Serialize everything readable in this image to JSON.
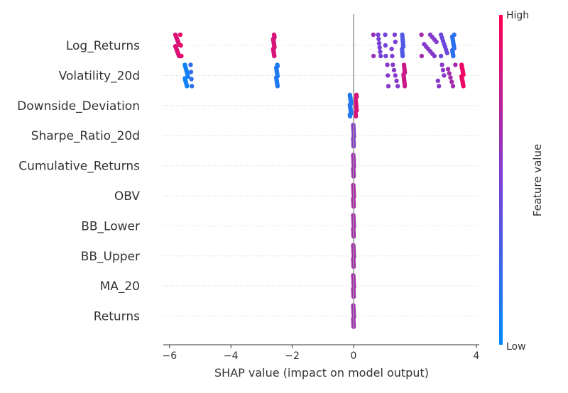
{
  "chart_data": {
    "type": "scatter",
    "subtype": "shap-beeswarm",
    "title": "",
    "xlabel": "SHAP value (impact on model output)",
    "xlim": [
      -6.2,
      4.1
    ],
    "xticks": [
      -6,
      -4,
      -2,
      0,
      4
    ],
    "colorbar": {
      "label": "Feature value",
      "high_label": "High",
      "low_label": "Low",
      "low_color": "#008bfb",
      "high_color": "#ff0052"
    },
    "features": [
      {
        "name": "Log_Returns",
        "clusters": [
          {
            "x": -5.75,
            "spread": 0.06,
            "count": 14,
            "value": 0.92
          },
          {
            "x": -5.6,
            "spread": 0.05,
            "count": 3,
            "value": 0.86
          },
          {
            "x": -2.6,
            "spread": 0.02,
            "count": 16,
            "value": 0.85
          },
          {
            "x": 0.65,
            "spread": 0.02,
            "count": 2,
            "value": 0.58
          },
          {
            "x": 0.85,
            "spread": 0.05,
            "count": 6,
            "value": 0.55
          },
          {
            "x": 1.05,
            "spread": 0.03,
            "count": 3,
            "value": 0.5
          },
          {
            "x": 1.3,
            "spread": 0.06,
            "count": 4,
            "value": 0.45
          },
          {
            "x": 1.6,
            "spread": 0.02,
            "count": 10,
            "value": 0.3
          },
          {
            "x": 2.2,
            "spread": 0.02,
            "count": 2,
            "value": 0.62
          },
          {
            "x": 2.5,
            "spread": 0.2,
            "count": 10,
            "value": 0.6
          },
          {
            "x": 2.95,
            "spread": 0.1,
            "count": 8,
            "value": 0.5
          },
          {
            "x": 3.25,
            "spread": 0.03,
            "count": 12,
            "value": 0.15
          }
        ]
      },
      {
        "name": "Volatility_20d",
        "clusters": [
          {
            "x": -5.45,
            "spread": 0.05,
            "count": 12,
            "value": 0.12
          },
          {
            "x": -5.3,
            "spread": 0.04,
            "count": 4,
            "value": 0.2
          },
          {
            "x": -2.5,
            "spread": 0.02,
            "count": 16,
            "value": 0.15
          },
          {
            "x": 1.1,
            "spread": 0.05,
            "count": 3,
            "value": 0.55
          },
          {
            "x": 1.4,
            "spread": 0.12,
            "count": 5,
            "value": 0.6
          },
          {
            "x": 1.65,
            "spread": 0.02,
            "count": 12,
            "value": 0.85
          },
          {
            "x": 2.85,
            "spread": 0.1,
            "count": 5,
            "value": 0.55
          },
          {
            "x": 3.2,
            "spread": 0.12,
            "count": 6,
            "value": 0.65
          },
          {
            "x": 3.55,
            "spread": 0.03,
            "count": 14,
            "value": 0.9
          }
        ]
      },
      {
        "name": "Downside_Deviation",
        "clusters": [
          {
            "x": -0.1,
            "spread": 0.02,
            "count": 16,
            "value": 0.2
          },
          {
            "x": 0.08,
            "spread": 0.02,
            "count": 12,
            "value": 0.88
          }
        ]
      },
      {
        "name": "Sharpe_Ratio_20d",
        "clusters": [
          {
            "x": 0.0,
            "spread": 0.01,
            "count": 12,
            "value": 0.6
          }
        ]
      },
      {
        "name": "Cumulative_Returns",
        "clusters": [
          {
            "x": 0.0,
            "spread": 0.01,
            "count": 12,
            "value": 0.7
          }
        ]
      },
      {
        "name": "OBV",
        "clusters": [
          {
            "x": 0.0,
            "spread": 0.01,
            "count": 12,
            "value": 0.75
          }
        ]
      },
      {
        "name": "BB_Lower",
        "clusters": [
          {
            "x": 0.0,
            "spread": 0.01,
            "count": 12,
            "value": 0.72
          }
        ]
      },
      {
        "name": "BB_Upper",
        "clusters": [
          {
            "x": 0.0,
            "spread": 0.01,
            "count": 12,
            "value": 0.72
          }
        ]
      },
      {
        "name": "MA_20",
        "clusters": [
          {
            "x": 0.0,
            "spread": 0.01,
            "count": 12,
            "value": 0.72
          }
        ]
      },
      {
        "name": "Returns",
        "clusters": [
          {
            "x": 0.0,
            "spread": 0.01,
            "count": 12,
            "value": 0.7
          }
        ]
      }
    ]
  }
}
